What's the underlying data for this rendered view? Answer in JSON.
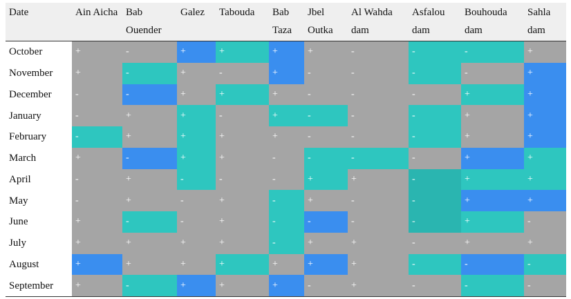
{
  "header": [
    "Date",
    "Ain Aicha",
    "Bab Ouender",
    "Galez",
    "Tabouda",
    "Bab Taza",
    "Jbel Outka",
    "Al Wahda dam",
    "Asfalou dam",
    "Bouhouda dam",
    "Sahla dam"
  ],
  "rows": [
    {
      "date": "October",
      "cells": [
        {
          "v": "+",
          "c": "#a5a5a5"
        },
        {
          "v": "-",
          "c": "#a5a5a5"
        },
        {
          "v": "+",
          "c": "#3a8eef"
        },
        {
          "v": "+",
          "c": "#2ec6bf"
        },
        {
          "v": "+",
          "c": "#3a8eef"
        },
        {
          "v": "+",
          "c": "#a5a5a5"
        },
        {
          "v": "-",
          "c": "#a5a5a5"
        },
        {
          "v": "-",
          "c": "#2ec6bf"
        },
        {
          "v": "-",
          "c": "#2ec6bf"
        },
        {
          "v": "+",
          "c": "#a5a5a5"
        }
      ]
    },
    {
      "date": "November",
      "cells": [
        {
          "v": "+",
          "c": "#a5a5a5"
        },
        {
          "v": "-",
          "c": "#2ec6bf"
        },
        {
          "v": "+",
          "c": "#a5a5a5"
        },
        {
          "v": "-",
          "c": "#a5a5a5"
        },
        {
          "v": "+",
          "c": "#3a8eef"
        },
        {
          "v": "-",
          "c": "#a5a5a5"
        },
        {
          "v": "-",
          "c": "#a5a5a5"
        },
        {
          "v": "-",
          "c": "#2ec6bf"
        },
        {
          "v": "-",
          "c": "#a5a5a5"
        },
        {
          "v": "+",
          "c": "#3a8eef"
        }
      ]
    },
    {
      "date": "December",
      "cells": [
        {
          "v": "-",
          "c": "#a5a5a5"
        },
        {
          "v": "-",
          "c": "#3a8eef"
        },
        {
          "v": "+",
          "c": "#a5a5a5"
        },
        {
          "v": "+",
          "c": "#2ec6bf"
        },
        {
          "v": "+",
          "c": "#a5a5a5"
        },
        {
          "v": "-",
          "c": "#a5a5a5"
        },
        {
          "v": "-",
          "c": "#a5a5a5"
        },
        {
          "v": "-",
          "c": "#a5a5a5"
        },
        {
          "v": "+",
          "c": "#2ec6bf"
        },
        {
          "v": "+",
          "c": "#3a8eef"
        }
      ]
    },
    {
      "date": "January",
      "cells": [
        {
          "v": "-",
          "c": "#a5a5a5"
        },
        {
          "v": "+",
          "c": "#a5a5a5"
        },
        {
          "v": "+",
          "c": "#2ec6bf"
        },
        {
          "v": "-",
          "c": "#a5a5a5"
        },
        {
          "v": "+",
          "c": "#2ec6bf"
        },
        {
          "v": "-",
          "c": "#2ec6bf"
        },
        {
          "v": "-",
          "c": "#a5a5a5"
        },
        {
          "v": "-",
          "c": "#2ec6bf"
        },
        {
          "v": "+",
          "c": "#a5a5a5"
        },
        {
          "v": "+",
          "c": "#3a8eef"
        }
      ]
    },
    {
      "date": "February",
      "cells": [
        {
          "v": "-",
          "c": "#2ec6bf"
        },
        {
          "v": "+",
          "c": "#a5a5a5"
        },
        {
          "v": "+",
          "c": "#2ec6bf"
        },
        {
          "v": "+",
          "c": "#a5a5a5"
        },
        {
          "v": "+",
          "c": "#a5a5a5"
        },
        {
          "v": "-",
          "c": "#a5a5a5"
        },
        {
          "v": "-",
          "c": "#a5a5a5"
        },
        {
          "v": "-",
          "c": "#2ec6bf"
        },
        {
          "v": "+",
          "c": "#a5a5a5"
        },
        {
          "v": "+",
          "c": "#3a8eef"
        }
      ]
    },
    {
      "date": "March",
      "cells": [
        {
          "v": "+",
          "c": "#a5a5a5"
        },
        {
          "v": "-",
          "c": "#3a8eef"
        },
        {
          "v": "+",
          "c": "#2ec6bf"
        },
        {
          "v": "+",
          "c": "#a5a5a5"
        },
        {
          "v": "-",
          "c": "#a5a5a5"
        },
        {
          "v": "-",
          "c": "#2ec6bf"
        },
        {
          "v": "-",
          "c": "#2ec6bf"
        },
        {
          "v": "-",
          "c": "#a5a5a5"
        },
        {
          "v": "+",
          "c": "#3a8eef"
        },
        {
          "v": "+",
          "c": "#2ec6bf"
        }
      ]
    },
    {
      "date": "April",
      "cells": [
        {
          "v": "-",
          "c": "#a5a5a5"
        },
        {
          "v": "+",
          "c": "#a5a5a5"
        },
        {
          "v": "-",
          "c": "#2ec6bf"
        },
        {
          "v": "-",
          "c": "#a5a5a5"
        },
        {
          "v": "-",
          "c": "#a5a5a5"
        },
        {
          "v": "+",
          "c": "#2ec6bf"
        },
        {
          "v": "+",
          "c": "#a5a5a5"
        },
        {
          "v": "-",
          "c": "#2ab5b0"
        },
        {
          "v": "+",
          "c": "#2ec6bf"
        },
        {
          "v": "+",
          "c": "#2ec6bf"
        }
      ]
    },
    {
      "date": "May",
      "cells": [
        {
          "v": "-",
          "c": "#a5a5a5"
        },
        {
          "v": "+",
          "c": "#a5a5a5"
        },
        {
          "v": "-",
          "c": "#a5a5a5"
        },
        {
          "v": "+",
          "c": "#a5a5a5"
        },
        {
          "v": "-",
          "c": "#2ec6bf"
        },
        {
          "v": "+",
          "c": "#a5a5a5"
        },
        {
          "v": "-",
          "c": "#a5a5a5"
        },
        {
          "v": "-",
          "c": "#2ab5b0"
        },
        {
          "v": "+",
          "c": "#3a8eef"
        },
        {
          "v": "+",
          "c": "#3a8eef"
        }
      ]
    },
    {
      "date": "June",
      "cells": [
        {
          "v": "+",
          "c": "#a5a5a5"
        },
        {
          "v": "-",
          "c": "#2ec6bf"
        },
        {
          "v": "-",
          "c": "#a5a5a5"
        },
        {
          "v": "+",
          "c": "#a5a5a5"
        },
        {
          "v": "-",
          "c": "#2ec6bf"
        },
        {
          "v": "-",
          "c": "#3a8eef"
        },
        {
          "v": "-",
          "c": "#a5a5a5"
        },
        {
          "v": "-",
          "c": "#2ab5b0"
        },
        {
          "v": "+",
          "c": "#2ec6bf"
        },
        {
          "v": "-",
          "c": "#a5a5a5"
        }
      ]
    },
    {
      "date": "July",
      "cells": [
        {
          "v": "+",
          "c": "#a5a5a5"
        },
        {
          "v": "+",
          "c": "#a5a5a5"
        },
        {
          "v": "+",
          "c": "#a5a5a5"
        },
        {
          "v": "+",
          "c": "#a5a5a5"
        },
        {
          "v": "-",
          "c": "#2ec6bf"
        },
        {
          "v": "+",
          "c": "#a5a5a5"
        },
        {
          "v": "+",
          "c": "#a5a5a5"
        },
        {
          "v": "-",
          "c": "#a5a5a5"
        },
        {
          "v": "+",
          "c": "#a5a5a5"
        },
        {
          "v": "+",
          "c": "#a5a5a5"
        }
      ]
    },
    {
      "date": "August",
      "cells": [
        {
          "v": "+",
          "c": "#3a8eef"
        },
        {
          "v": "+",
          "c": "#a5a5a5"
        },
        {
          "v": "+",
          "c": "#a5a5a5"
        },
        {
          "v": "+",
          "c": "#2ec6bf"
        },
        {
          "v": "+",
          "c": "#a5a5a5"
        },
        {
          "v": "+",
          "c": "#3a8eef"
        },
        {
          "v": "+",
          "c": "#a5a5a5"
        },
        {
          "v": "-",
          "c": "#2ec6bf"
        },
        {
          "v": "-",
          "c": "#3a8eef"
        },
        {
          "v": "-",
          "c": "#2ec6bf"
        }
      ]
    },
    {
      "date": "September",
      "cells": [
        {
          "v": "+",
          "c": "#a5a5a5"
        },
        {
          "v": "-",
          "c": "#2ec6bf"
        },
        {
          "v": "+",
          "c": "#3a8eef"
        },
        {
          "v": "+",
          "c": "#a5a5a5"
        },
        {
          "v": "+",
          "c": "#3a8eef"
        },
        {
          "v": "-",
          "c": "#a5a5a5"
        },
        {
          "v": "+",
          "c": "#a5a5a5"
        },
        {
          "v": "-",
          "c": "#a5a5a5"
        },
        {
          "v": "-",
          "c": "#2ec6bf"
        },
        {
          "v": "-",
          "c": "#a5a5a5"
        }
      ]
    }
  ]
}
